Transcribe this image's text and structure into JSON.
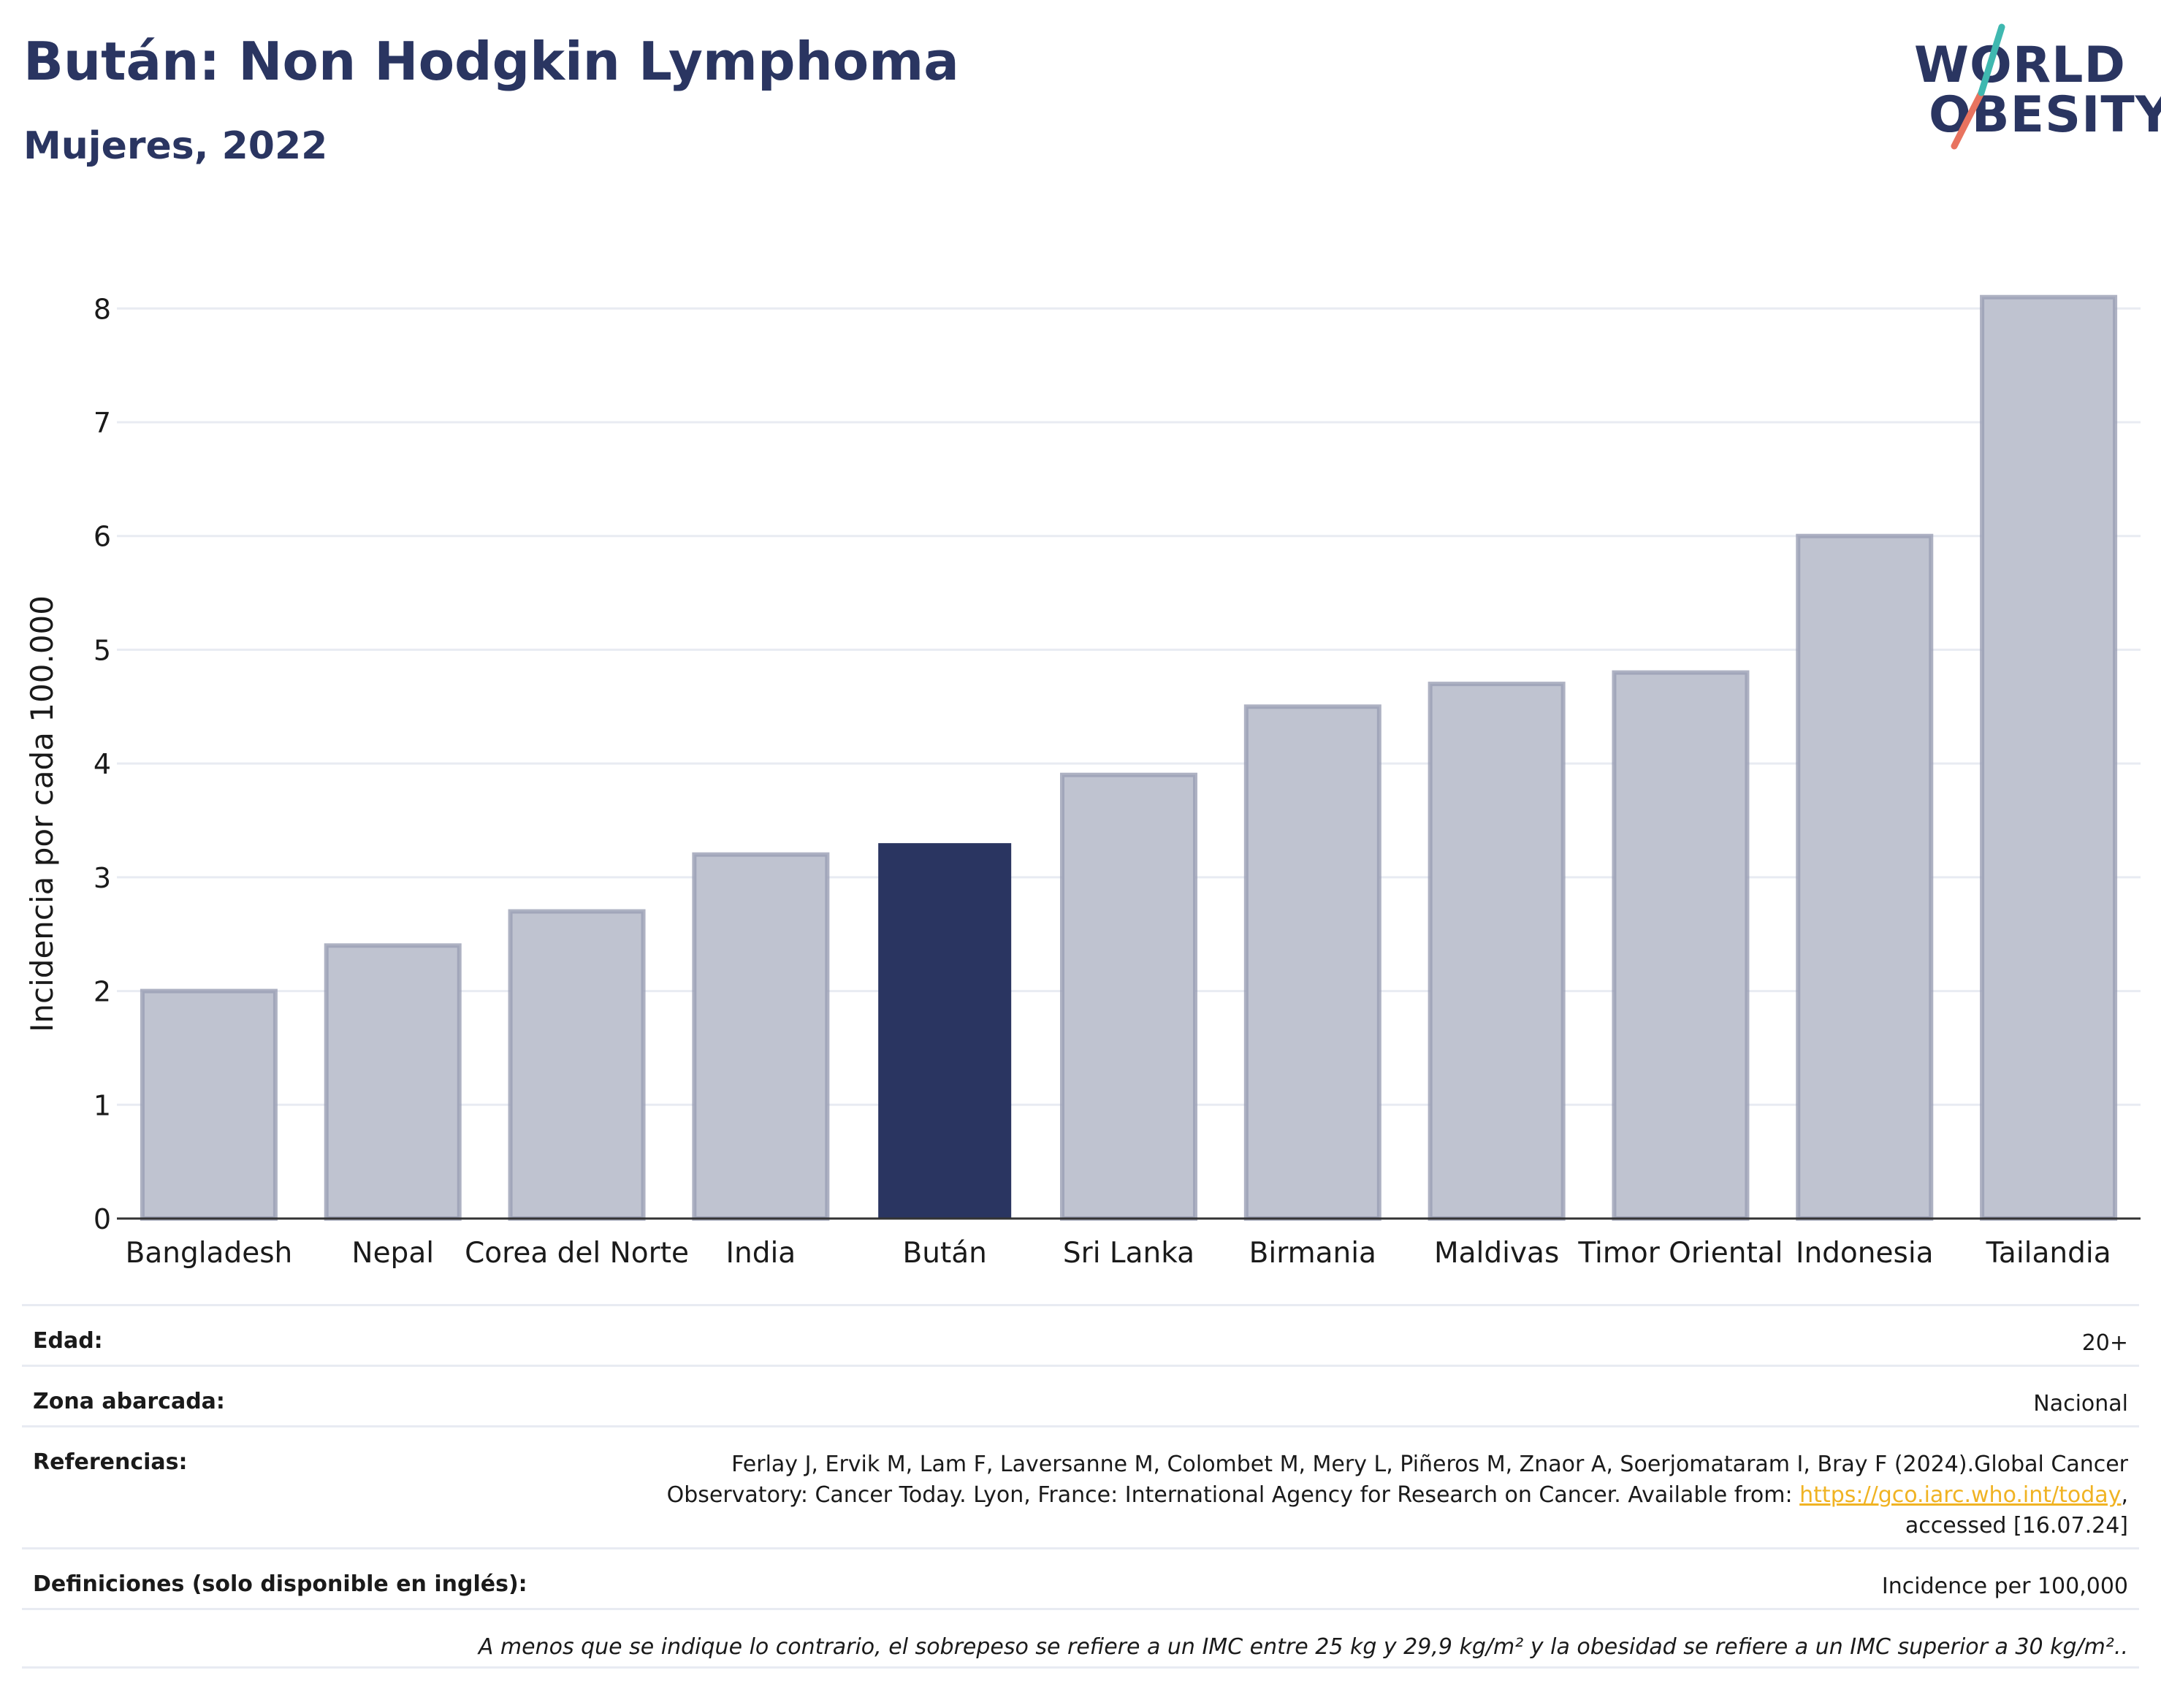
{
  "header": {
    "title": "Bután: Non Hodgkin Lymphoma",
    "subtitle": "Mujeres, 2022"
  },
  "logo": {
    "line1": "WORLD",
    "line2": "OBESITY",
    "colors": {
      "text": "#2a3561",
      "slash_teal": "#3fb8b0",
      "slash_coral": "#e8735f"
    }
  },
  "colors": {
    "highlight_bar": "#2a3561",
    "other_bar": "#bfc3d0",
    "other_bar_border": "#9a9fb4",
    "gridline": "#e8ebf2",
    "text": "#2a3561",
    "link": "#f0b323"
  },
  "chart_data": {
    "type": "bar",
    "title": "Bután: Non Hodgkin Lymphoma",
    "subtitle": "Mujeres, 2022",
    "xlabel": "",
    "ylabel": "Incidencia por cada 100.000",
    "categories": [
      "Bangladesh",
      "Nepal",
      "Corea del Norte",
      "India",
      "Bután",
      "Sri Lanka",
      "Birmania",
      "Maldivas",
      "Timor Oriental",
      "Indonesia",
      "Tailandia"
    ],
    "values": [
      2.0,
      2.4,
      2.7,
      3.2,
      3.3,
      3.9,
      4.5,
      4.7,
      4.8,
      6.0,
      8.1
    ],
    "highlight": "Bután",
    "ylim": [
      0,
      8.4
    ],
    "yticks": [
      0,
      1,
      2,
      3,
      4,
      5,
      6,
      7,
      8
    ],
    "grid": true,
    "legend": "none"
  },
  "meta": {
    "age_label": "Edad:",
    "age_value": "20+",
    "area_label": "Zona abarcada:",
    "area_value": "Nacional",
    "refs_label": "Referencias:",
    "refs_line1": "Ferlay J, Ervik M, Lam F, Laversanne M, Colombet M, Mery L, Piñeros M, Znaor A, Soerjomataram I, Bray F (2024).Global Cancer",
    "refs_line2_pre": "Observatory: Cancer Today. Lyon, France: International Agency for Research on Cancer. Available from: ",
    "refs_link": "https://gco.iarc.who.int/today",
    "refs_line2_post": ",",
    "refs_line3": "accessed [16.07.24]",
    "defs_label": "Definiciones (solo disponible en inglés):",
    "defs_value": "Incidence per 100,000",
    "footnote": "A menos que se indique lo contrario, el sobrepeso se refiere a un IMC entre 25 kg y 29,9 kg/m² y la obesidad se refiere a un IMC superior a 30 kg/m².."
  }
}
